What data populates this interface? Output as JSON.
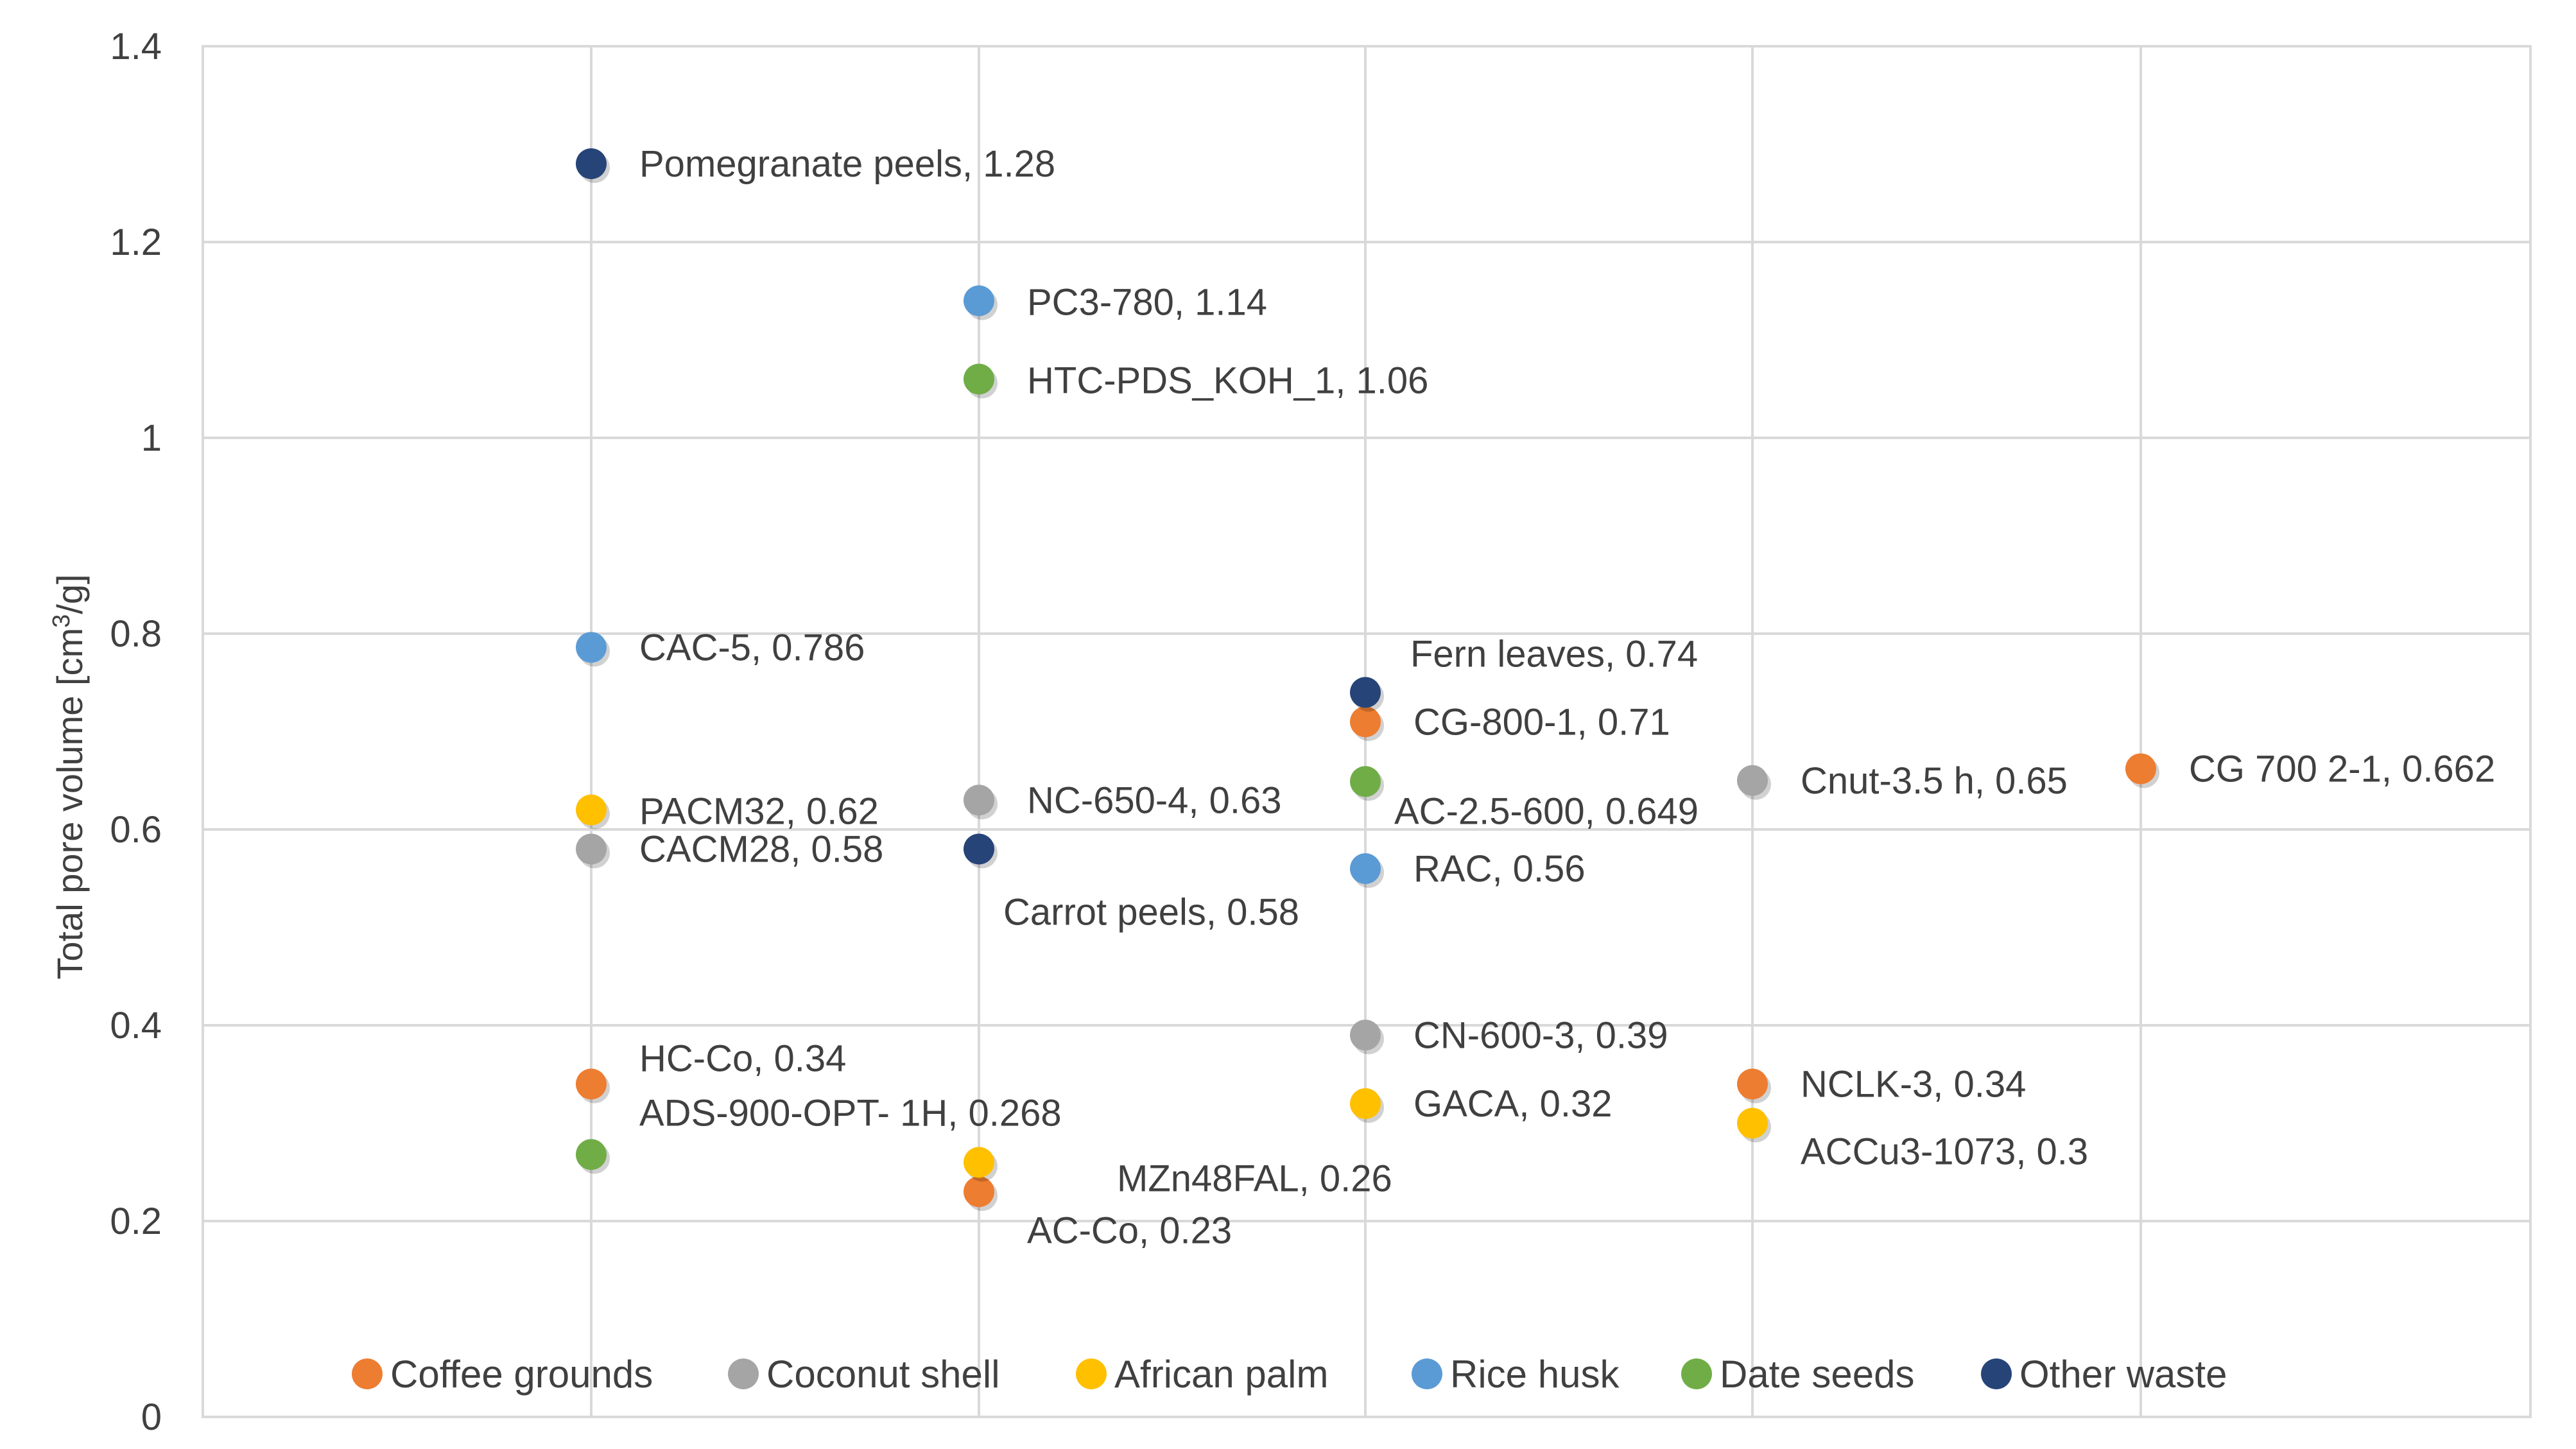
{
  "chart_data": {
    "type": "scatter",
    "title": "",
    "xlabel": "",
    "ylabel_main": "Total pore volume [cm",
    "ylabel_sup": "3",
    "ylabel_tail": "/g]",
    "ylim": [
      0,
      1.4
    ],
    "ytick_step": 0.2,
    "ytick_labels": [
      "0",
      "0.2",
      "0.4",
      "0.6",
      "0.8",
      "1",
      "1.2",
      "1.4"
    ],
    "xlim": [
      0.5,
      6.5
    ],
    "grid": true,
    "legend_position": "bottom",
    "series": [
      {
        "name": "Coffee grounds",
        "color": "#ED7D31",
        "points": [
          {
            "x": 1,
            "y": 0.34,
            "label": "HC-Co, 0.34"
          },
          {
            "x": 2,
            "y": 0.23,
            "label": "AC-Co, 0.23"
          },
          {
            "x": 3,
            "y": 0.71,
            "label": "CG-800-1, 0.71"
          },
          {
            "x": 4,
            "y": 0.34,
            "label": "NCLK-3, 0.34"
          },
          {
            "x": 5,
            "y": 0.662,
            "label": "CG 700 2-1, 0.662"
          }
        ]
      },
      {
        "name": "Coconut shell",
        "color": "#A5A5A5",
        "points": [
          {
            "x": 1,
            "y": 0.58,
            "label": "CACM28, 0.58"
          },
          {
            "x": 2,
            "y": 0.63,
            "label": "NC-650-4, 0.63"
          },
          {
            "x": 3,
            "y": 0.39,
            "label": "CN-600-3, 0.39"
          },
          {
            "x": 4,
            "y": 0.65,
            "label": "Cnut-3.5 h, 0.65"
          }
        ]
      },
      {
        "name": "African palm",
        "color": "#FFC000",
        "points": [
          {
            "x": 1,
            "y": 0.62,
            "label": "PACM32, 0.62"
          },
          {
            "x": 2,
            "y": 0.26,
            "label": "MZn48FAL, 0.26"
          },
          {
            "x": 3,
            "y": 0.32,
            "label": "GACA, 0.32"
          },
          {
            "x": 4,
            "y": 0.3,
            "label": "ACCu3-1073, 0.3"
          }
        ]
      },
      {
        "name": "Rice husk",
        "color": "#5B9BD5",
        "points": [
          {
            "x": 1,
            "y": 0.786,
            "label": "CAC-5, 0.786"
          },
          {
            "x": 2,
            "y": 1.14,
            "label": "PC3-780, 1.14"
          },
          {
            "x": 3,
            "y": 0.56,
            "label": "RAC, 0.56"
          }
        ]
      },
      {
        "name": "Date seeds",
        "color": "#70AD47",
        "points": [
          {
            "x": 1,
            "y": 0.268,
            "label": "ADS-900-OPT- 1H, 0.268"
          },
          {
            "x": 2,
            "y": 1.06,
            "label": "HTC-PDS_KOH_1, 1.06"
          },
          {
            "x": 3,
            "y": 0.649,
            "label": "AC-2.5-600, 0.649"
          }
        ]
      },
      {
        "name": "Other waste",
        "color": "#264478",
        "points": [
          {
            "x": 1,
            "y": 1.28,
            "label": "Pomegranate peels, 1.28"
          },
          {
            "x": 2,
            "y": 0.58,
            "label": "Carrot peels, 0.58"
          },
          {
            "x": 3,
            "y": 0.74,
            "label": "Fern leaves, 0.74"
          }
        ]
      }
    ]
  }
}
